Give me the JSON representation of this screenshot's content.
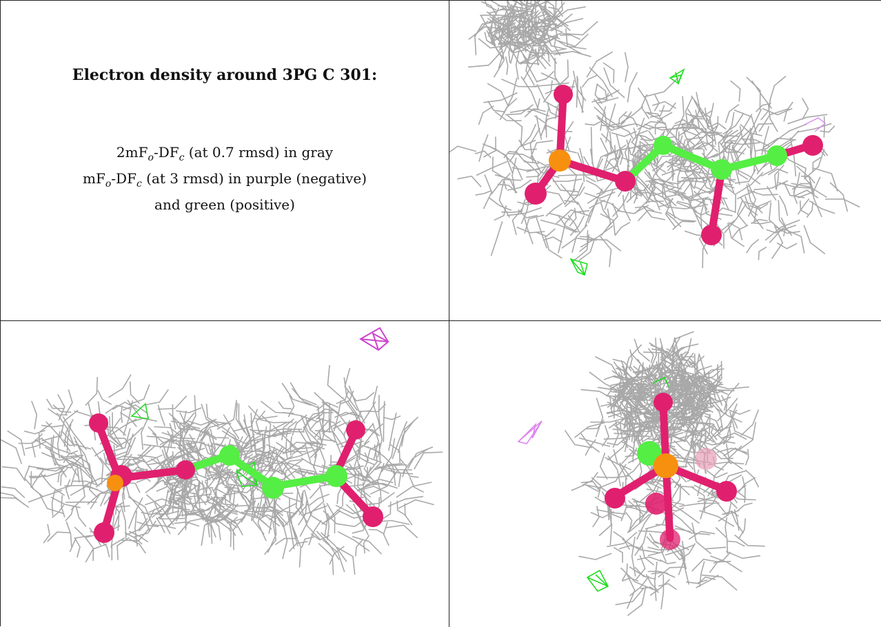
{
  "caption": {
    "title": "Electron density around 3PG C 301:",
    "line1_a": "2mF",
    "line1_o": "o",
    "line1_b": "-DF",
    "line1_c": "c",
    "line1_rest": " (at 0.7 rmsd) in gray",
    "line2_a": "mF",
    "line2_o": "o",
    "line2_b": "-DF",
    "line2_c": "c",
    "line2_rest": " (at 3 rmsd) in purple (negative)",
    "line3": "and green (positive)"
  },
  "colors": {
    "mesh_gray": "#9a9a9a",
    "mesh_negative": "#cc44cc",
    "mesh_negative_light": "#dd88ee",
    "mesh_positive": "#22dd22",
    "oxygen": "#e0206e",
    "phosphorus": "#f7900f",
    "carbon": "#55ee44",
    "border": "#222222"
  },
  "views": [
    {
      "id": "top-right",
      "icons": [
        "gray-density-mesh",
        "ball-and-stick-model",
        "green-difference-mesh",
        "purple-difference-mesh"
      ]
    },
    {
      "id": "bottom-left",
      "icons": [
        "gray-density-mesh",
        "ball-and-stick-model",
        "green-difference-mesh",
        "purple-difference-mesh"
      ]
    },
    {
      "id": "bottom-right",
      "icons": [
        "gray-density-mesh",
        "ball-and-stick-model",
        "green-difference-mesh",
        "purple-difference-mesh"
      ]
    }
  ]
}
